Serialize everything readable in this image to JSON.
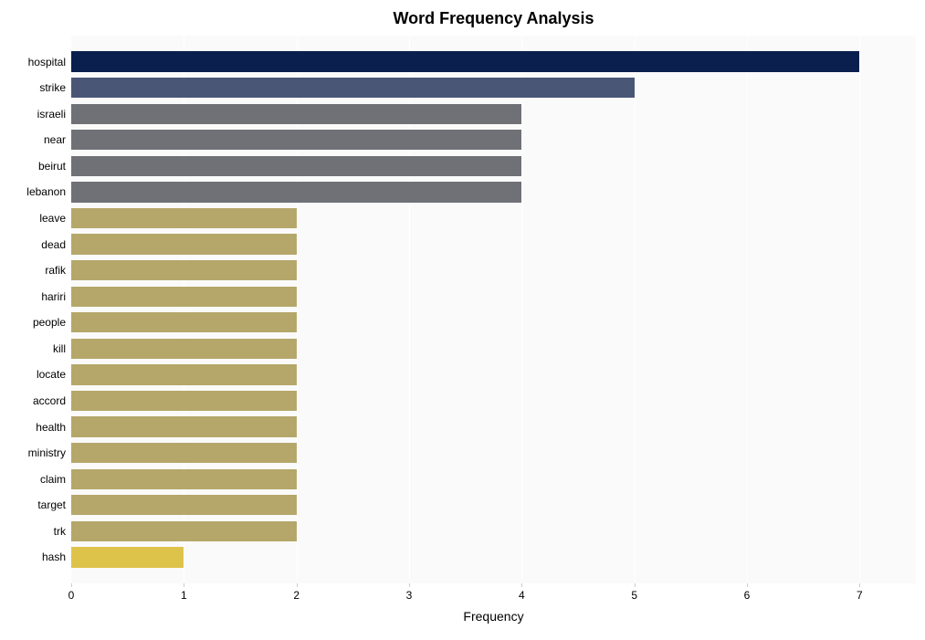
{
  "chart": {
    "type": "bar-horizontal",
    "title": "Word Frequency Analysis",
    "title_fontsize": 18,
    "title_fontweight": "bold",
    "xlabel": "Frequency",
    "xlabel_fontsize": 14,
    "label_fontsize": 12,
    "tick_fontsize": 12,
    "background_color": "#ffffff",
    "plot_background": "#fafafa",
    "grid_color": "#ffffff",
    "band_color": "#f5f5f5",
    "xlim": [
      0,
      7.5
    ],
    "xticks": [
      0,
      1,
      2,
      3,
      4,
      5,
      6,
      7
    ],
    "bar_height_ratio": 0.78,
    "bars": [
      {
        "label": "hospital",
        "value": 7,
        "color": "#0a1f4d"
      },
      {
        "label": "strike",
        "value": 5,
        "color": "#4a5676"
      },
      {
        "label": "israeli",
        "value": 4,
        "color": "#6f7177"
      },
      {
        "label": "near",
        "value": 4,
        "color": "#6f7177"
      },
      {
        "label": "beirut",
        "value": 4,
        "color": "#6f7177"
      },
      {
        "label": "lebanon",
        "value": 4,
        "color": "#6f7177"
      },
      {
        "label": "leave",
        "value": 2,
        "color": "#b5a76a"
      },
      {
        "label": "dead",
        "value": 2,
        "color": "#b5a76a"
      },
      {
        "label": "rafik",
        "value": 2,
        "color": "#b5a76a"
      },
      {
        "label": "hariri",
        "value": 2,
        "color": "#b5a76a"
      },
      {
        "label": "people",
        "value": 2,
        "color": "#b5a76a"
      },
      {
        "label": "kill",
        "value": 2,
        "color": "#b5a76a"
      },
      {
        "label": "locate",
        "value": 2,
        "color": "#b5a76a"
      },
      {
        "label": "accord",
        "value": 2,
        "color": "#b5a76a"
      },
      {
        "label": "health",
        "value": 2,
        "color": "#b5a76a"
      },
      {
        "label": "ministry",
        "value": 2,
        "color": "#b5a76a"
      },
      {
        "label": "claim",
        "value": 2,
        "color": "#b5a76a"
      },
      {
        "label": "target",
        "value": 2,
        "color": "#b5a76a"
      },
      {
        "label": "trk",
        "value": 2,
        "color": "#b5a76a"
      },
      {
        "label": "hash",
        "value": 1,
        "color": "#dec34b"
      }
    ]
  }
}
